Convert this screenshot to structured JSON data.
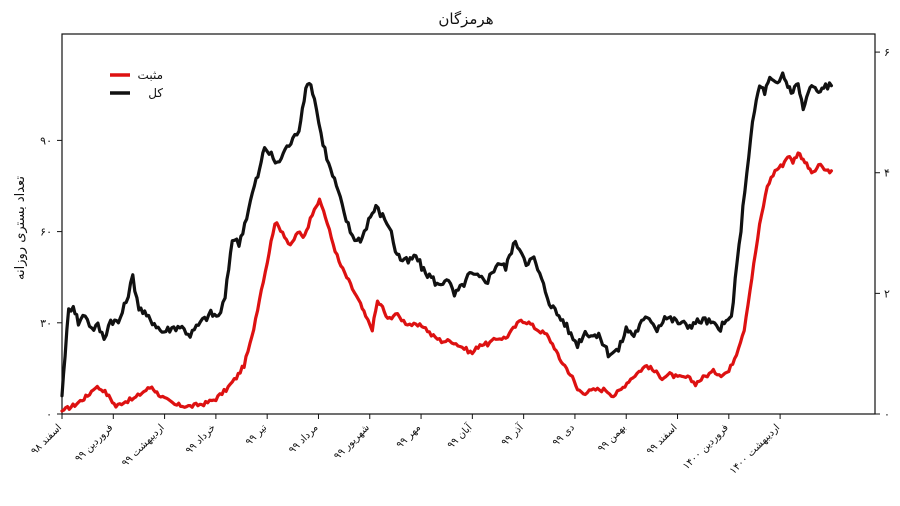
{
  "chart_data": {
    "type": "line",
    "title": "هرمزگان",
    "ylabel": "تعداد بستری روزانه",
    "ylabel_right": "",
    "ylim": [
      0,
      125
    ],
    "ylim_right": [
      0,
      6.3
    ],
    "yticks": [
      {
        "value": 0,
        "label": "۰"
      },
      {
        "value": 30,
        "label": "۳۰"
      },
      {
        "value": 60,
        "label": "۶۰"
      },
      {
        "value": 90,
        "label": "۹۰"
      }
    ],
    "yticks_right": [
      {
        "value": 0,
        "label": "۰"
      },
      {
        "value": 2,
        "label": "۲"
      },
      {
        "value": 4,
        "label": "۴"
      },
      {
        "value": 6,
        "label": "۶"
      }
    ],
    "xlim": [
      0,
      15.85
    ],
    "x_ticks": [
      {
        "value": 0,
        "label": "اسفند ۹۸"
      },
      {
        "value": 1,
        "label": "فروردین ۹۹"
      },
      {
        "value": 2,
        "label": "اردیبهشت ۹۹"
      },
      {
        "value": 3,
        "label": "خرداد ۹۹"
      },
      {
        "value": 4,
        "label": "تیر ۹۹"
      },
      {
        "value": 5,
        "label": "مرداد ۹۹"
      },
      {
        "value": 6,
        "label": "شهریور ۹۹"
      },
      {
        "value": 7,
        "label": "مهر ۹۹"
      },
      {
        "value": 8,
        "label": "آبان ۹۹"
      },
      {
        "value": 9,
        "label": "آذر ۹۹"
      },
      {
        "value": 10,
        "label": "دی ۹۹"
      },
      {
        "value": 11,
        "label": "بهمن ۹۹"
      },
      {
        "value": 12,
        "label": "اسفند ۹۹"
      },
      {
        "value": 13,
        "label": "فروردین ۱۴۰۰"
      },
      {
        "value": 14,
        "label": "اردیبهشت ۱۴۰۰"
      }
    ],
    "legend_position": "top-left",
    "series": [
      {
        "name": "مثبت",
        "color": "#dd1111",
        "points": [
          [
            0,
            1
          ],
          [
            0.25,
            3
          ],
          [
            0.5,
            6
          ],
          [
            0.65,
            9
          ],
          [
            0.8,
            8
          ],
          [
            0.95,
            5
          ],
          [
            1.05,
            2.5
          ],
          [
            1.2,
            4
          ],
          [
            1.4,
            5
          ],
          [
            1.6,
            7.5
          ],
          [
            1.75,
            9
          ],
          [
            1.85,
            7
          ],
          [
            2.0,
            5
          ],
          [
            2.2,
            3
          ],
          [
            2.5,
            2.5
          ],
          [
            2.8,
            3.5
          ],
          [
            3.0,
            5
          ],
          [
            3.2,
            8
          ],
          [
            3.4,
            12
          ],
          [
            3.55,
            16
          ],
          [
            3.7,
            25
          ],
          [
            3.85,
            38
          ],
          [
            4.0,
            50
          ],
          [
            4.15,
            63
          ],
          [
            4.3,
            60
          ],
          [
            4.45,
            55
          ],
          [
            4.6,
            60
          ],
          [
            4.7,
            58
          ],
          [
            4.8,
            62
          ],
          [
            4.92,
            68
          ],
          [
            5.02,
            70
          ],
          [
            5.1,
            67
          ],
          [
            5.25,
            58
          ],
          [
            5.4,
            50
          ],
          [
            5.55,
            45
          ],
          [
            5.7,
            40
          ],
          [
            5.82,
            36
          ],
          [
            5.92,
            32
          ],
          [
            6.05,
            28
          ],
          [
            6.15,
            37
          ],
          [
            6.25,
            35
          ],
          [
            6.35,
            31
          ],
          [
            6.5,
            33
          ],
          [
            6.7,
            30
          ],
          [
            6.9,
            29
          ],
          [
            7.05,
            29
          ],
          [
            7.2,
            26
          ],
          [
            7.4,
            24
          ],
          [
            7.6,
            24
          ],
          [
            7.8,
            22
          ],
          [
            8.0,
            20
          ],
          [
            8.15,
            23
          ],
          [
            8.3,
            23
          ],
          [
            8.5,
            25
          ],
          [
            8.65,
            25
          ],
          [
            8.8,
            28
          ],
          [
            8.95,
            31
          ],
          [
            9.1,
            30
          ],
          [
            9.25,
            28
          ],
          [
            9.45,
            26
          ],
          [
            9.6,
            22
          ],
          [
            9.7,
            18
          ],
          [
            9.8,
            16
          ],
          [
            9.95,
            12
          ],
          [
            10.05,
            8
          ],
          [
            10.2,
            7
          ],
          [
            10.4,
            8
          ],
          [
            10.6,
            8
          ],
          [
            10.75,
            6
          ],
          [
            10.9,
            8
          ],
          [
            11.05,
            11
          ],
          [
            11.25,
            14
          ],
          [
            11.4,
            16
          ],
          [
            11.55,
            14
          ],
          [
            11.7,
            12
          ],
          [
            11.85,
            13
          ],
          [
            12.0,
            12
          ],
          [
            12.2,
            12
          ],
          [
            12.35,
            10
          ],
          [
            12.5,
            12
          ],
          [
            12.7,
            14
          ],
          [
            12.85,
            13
          ],
          [
            13.0,
            14
          ],
          [
            13.15,
            20
          ],
          [
            13.3,
            28
          ],
          [
            13.45,
            45
          ],
          [
            13.6,
            62
          ],
          [
            13.75,
            75
          ],
          [
            13.9,
            80
          ],
          [
            14.05,
            82
          ],
          [
            14.15,
            85
          ],
          [
            14.25,
            83
          ],
          [
            14.35,
            86
          ],
          [
            14.45,
            84
          ],
          [
            14.55,
            81
          ],
          [
            14.65,
            79
          ],
          [
            14.75,
            82
          ],
          [
            14.9,
            80
          ],
          [
            15.0,
            80
          ]
        ]
      },
      {
        "name": "کل",
        "color": "#111111",
        "points": [
          [
            0,
            6
          ],
          [
            0.06,
            20
          ],
          [
            0.13,
            34
          ],
          [
            0.22,
            36
          ],
          [
            0.32,
            30
          ],
          [
            0.45,
            33
          ],
          [
            0.58,
            28
          ],
          [
            0.7,
            29
          ],
          [
            0.82,
            25
          ],
          [
            0.95,
            31
          ],
          [
            1.1,
            30
          ],
          [
            1.25,
            37
          ],
          [
            1.38,
            45
          ],
          [
            1.5,
            35
          ],
          [
            1.65,
            32
          ],
          [
            1.8,
            30
          ],
          [
            1.95,
            27
          ],
          [
            2.1,
            28
          ],
          [
            2.3,
            29
          ],
          [
            2.5,
            26
          ],
          [
            2.7,
            30
          ],
          [
            2.9,
            33
          ],
          [
            3.05,
            32
          ],
          [
            3.18,
            38
          ],
          [
            3.32,
            58
          ],
          [
            3.45,
            56
          ],
          [
            3.6,
            65
          ],
          [
            3.75,
            75
          ],
          [
            3.85,
            80
          ],
          [
            3.95,
            88
          ],
          [
            4.08,
            85
          ],
          [
            4.2,
            82
          ],
          [
            4.35,
            87
          ],
          [
            4.5,
            90
          ],
          [
            4.62,
            94
          ],
          [
            4.72,
            104
          ],
          [
            4.82,
            110
          ],
          [
            4.92,
            104
          ],
          [
            5.05,
            92
          ],
          [
            5.2,
            82
          ],
          [
            5.35,
            75
          ],
          [
            5.5,
            66
          ],
          [
            5.62,
            60
          ],
          [
            5.75,
            57
          ],
          [
            5.85,
            58
          ],
          [
            5.98,
            64
          ],
          [
            6.12,
            68
          ],
          [
            6.25,
            65
          ],
          [
            6.38,
            62
          ],
          [
            6.5,
            54
          ],
          [
            6.6,
            51
          ],
          [
            6.75,
            50
          ],
          [
            6.9,
            52
          ],
          [
            7.05,
            47
          ],
          [
            7.2,
            45
          ],
          [
            7.35,
            42
          ],
          [
            7.5,
            45
          ],
          [
            7.65,
            39
          ],
          [
            7.8,
            42
          ],
          [
            7.95,
            46
          ],
          [
            8.1,
            45
          ],
          [
            8.3,
            44
          ],
          [
            8.5,
            50
          ],
          [
            8.65,
            48
          ],
          [
            8.8,
            56
          ],
          [
            8.92,
            55
          ],
          [
            9.05,
            50
          ],
          [
            9.2,
            51
          ],
          [
            9.35,
            44
          ],
          [
            9.5,
            37
          ],
          [
            9.65,
            33
          ],
          [
            9.8,
            30
          ],
          [
            9.92,
            26
          ],
          [
            10.05,
            23
          ],
          [
            10.2,
            27
          ],
          [
            10.35,
            26
          ],
          [
            10.5,
            25
          ],
          [
            10.65,
            20
          ],
          [
            10.85,
            21
          ],
          [
            11.0,
            28
          ],
          [
            11.15,
            26
          ],
          [
            11.3,
            30
          ],
          [
            11.45,
            32
          ],
          [
            11.6,
            28
          ],
          [
            11.75,
            32
          ],
          [
            11.9,
            31
          ],
          [
            12.05,
            30
          ],
          [
            12.2,
            29
          ],
          [
            12.35,
            30
          ],
          [
            12.5,
            31
          ],
          [
            12.65,
            30
          ],
          [
            12.8,
            28
          ],
          [
            12.95,
            30
          ],
          [
            13.05,
            32
          ],
          [
            13.2,
            55
          ],
          [
            13.35,
            80
          ],
          [
            13.5,
            100
          ],
          [
            13.6,
            108
          ],
          [
            13.7,
            106
          ],
          [
            13.8,
            110
          ],
          [
            13.95,
            108
          ],
          [
            14.05,
            112
          ],
          [
            14.15,
            108
          ],
          [
            14.25,
            106
          ],
          [
            14.35,
            109
          ],
          [
            14.45,
            100
          ],
          [
            14.55,
            106
          ],
          [
            14.65,
            108
          ],
          [
            14.75,
            105
          ],
          [
            14.85,
            108
          ],
          [
            15.0,
            108
          ]
        ]
      }
    ]
  }
}
